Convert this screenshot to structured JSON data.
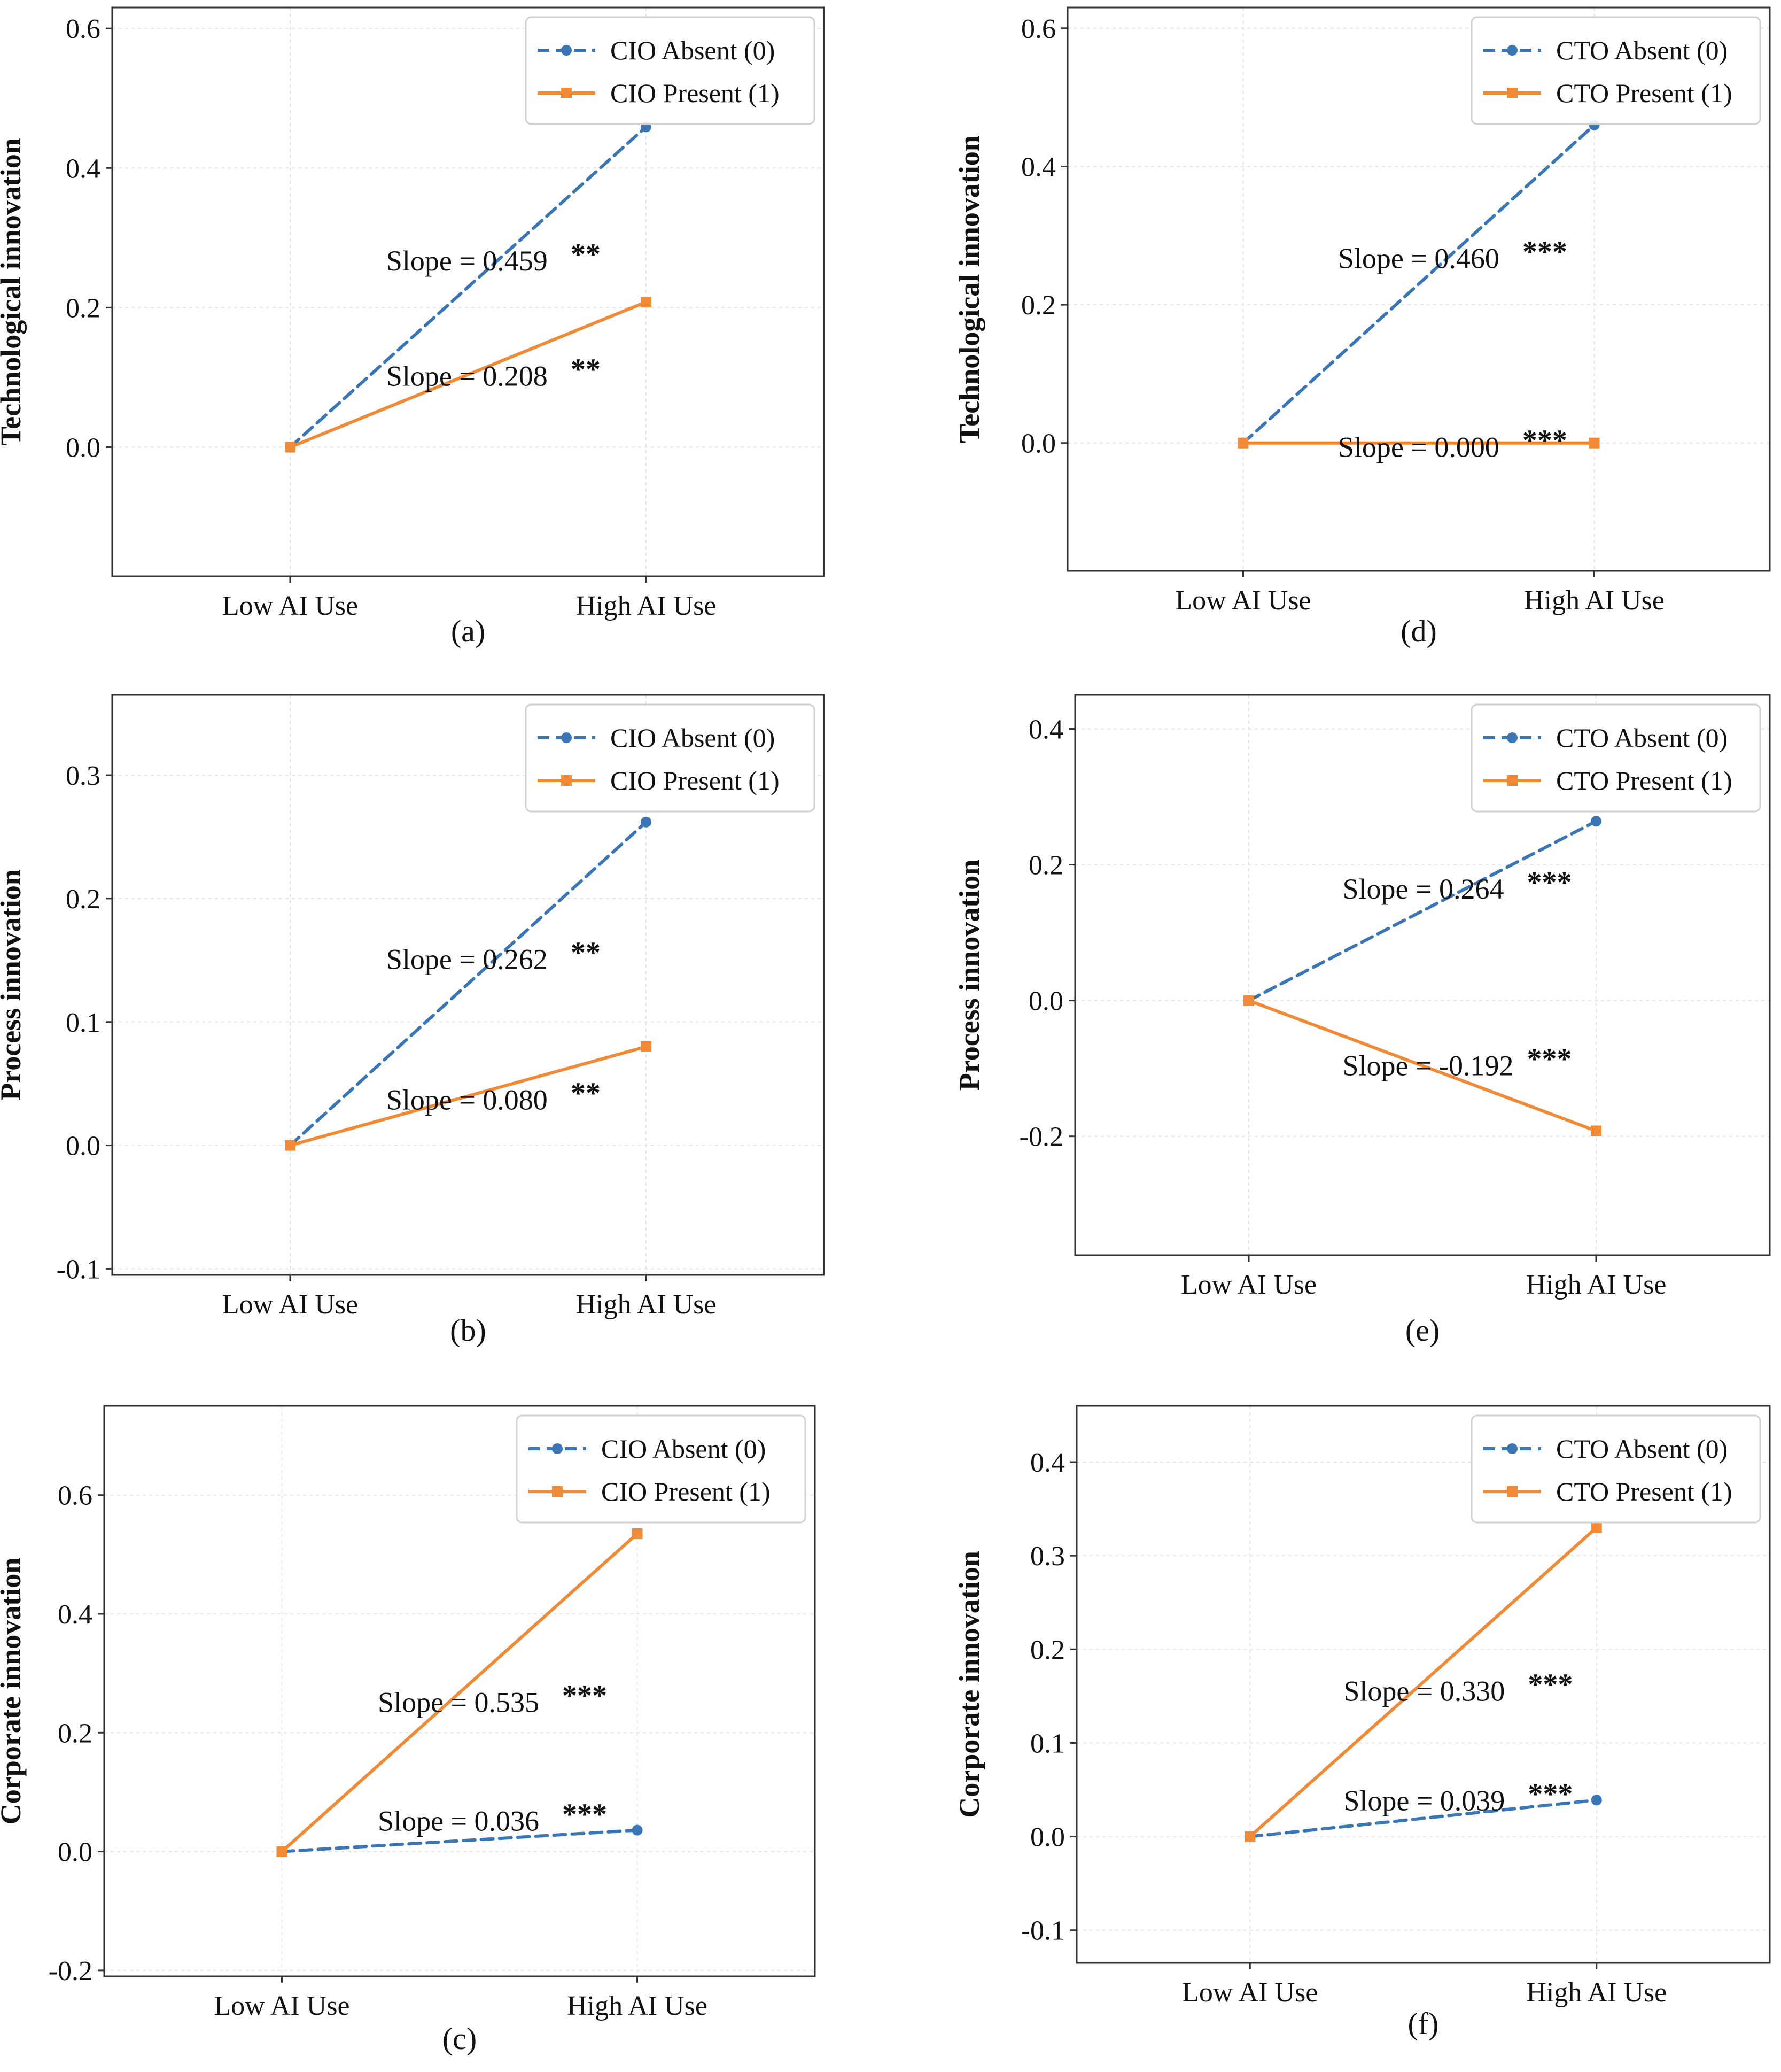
{
  "chart_data": [
    {
      "type": "line",
      "panel_label": "(a)",
      "ylabel": "Technological  innovation",
      "categories": [
        "Low AI Use",
        "High AI Use"
      ],
      "ylim": [
        -0.185,
        0.63
      ],
      "yticks": [
        "0.0",
        "0.2",
        "0.4",
        "0.6"
      ],
      "ytick_values": [
        0.0,
        0.2,
        0.4,
        0.6
      ],
      "legend_position": "top-right",
      "series": [
        {
          "name": "CIO Absent (0)",
          "values": [
            0,
            0.459
          ],
          "style": "dashed",
          "color": "#3a75b5",
          "marker": "circle"
        },
        {
          "name": "CIO Present (1)",
          "values": [
            0,
            0.208
          ],
          "style": "solid",
          "color": "#f08a36",
          "marker": "square"
        }
      ],
      "annotations": [
        {
          "text": "Slope = 0.459",
          "stars": "**",
          "y": 0.253
        },
        {
          "text": "Slope = 0.208",
          "stars": "**",
          "y": 0.088
        }
      ]
    },
    {
      "type": "line",
      "panel_label": "(b)",
      "ylabel": "Process  innovation",
      "categories": [
        "Low AI Use",
        "High AI Use"
      ],
      "ylim": [
        -0.105,
        0.365
      ],
      "yticks": [
        "-0.1",
        "0.0",
        "0.1",
        "0.2",
        "0.3"
      ],
      "ytick_values": [
        -0.1,
        0.0,
        0.1,
        0.2,
        0.3
      ],
      "legend_position": "top-right",
      "series": [
        {
          "name": "CIO Absent (0)",
          "values": [
            0,
            0.262
          ],
          "style": "dashed",
          "color": "#3a75b5",
          "marker": "circle"
        },
        {
          "name": "CIO Present (1)",
          "values": [
            0,
            0.08
          ],
          "style": "solid",
          "color": "#f08a36",
          "marker": "square"
        }
      ],
      "annotations": [
        {
          "text": "Slope = 0.262",
          "stars": "**",
          "y": 0.143
        },
        {
          "text": "Slope = 0.080",
          "stars": "**",
          "y": 0.029
        }
      ]
    },
    {
      "type": "line",
      "panel_label": "(c)",
      "ylabel": "Corporate  innovation",
      "categories": [
        "Low AI Use",
        "High AI Use"
      ],
      "ylim": [
        -0.21,
        0.75
      ],
      "yticks": [
        "-0.2",
        "0.0",
        "0.2",
        "0.4",
        "0.6"
      ],
      "ytick_values": [
        -0.2,
        0.0,
        0.2,
        0.4,
        0.6
      ],
      "legend_position": "top-right",
      "series": [
        {
          "name": "CIO Absent (0)",
          "values": [
            0,
            0.036
          ],
          "style": "dashed",
          "color": "#3a75b5",
          "marker": "circle"
        },
        {
          "name": "CIO Present (1)",
          "values": [
            0,
            0.535
          ],
          "style": "solid",
          "color": "#f08a36",
          "marker": "square"
        }
      ],
      "annotations": [
        {
          "text": "Slope = 0.535",
          "stars": "***",
          "y": 0.235
        },
        {
          "text": "Slope = 0.036",
          "stars": "***",
          "y": 0.035
        }
      ]
    },
    {
      "type": "line",
      "panel_label": "(d)",
      "ylabel": "Technological  innovation",
      "categories": [
        "Low AI Use",
        "High AI Use"
      ],
      "ylim": [
        -0.185,
        0.63
      ],
      "yticks": [
        "0.0",
        "0.2",
        "0.4",
        "0.6"
      ],
      "ytick_values": [
        0.0,
        0.2,
        0.4,
        0.6
      ],
      "legend_position": "top-right",
      "series": [
        {
          "name": "CTO Absent (0)",
          "values": [
            0,
            0.46
          ],
          "style": "dashed",
          "color": "#3a75b5",
          "marker": "circle"
        },
        {
          "name": "CTO Present (1)",
          "values": [
            0,
            0.0
          ],
          "style": "solid",
          "color": "#f08a36",
          "marker": "square"
        }
      ],
      "annotations": [
        {
          "text": "Slope = 0.460",
          "stars": "***",
          "y": 0.253
        },
        {
          "text": "Slope = 0.000",
          "stars": "***",
          "y": -0.02
        }
      ]
    },
    {
      "type": "line",
      "panel_label": "(e)",
      "ylabel": "Process  innovation",
      "categories": [
        "Low AI Use",
        "High AI Use"
      ],
      "ylim": [
        -0.375,
        0.45
      ],
      "yticks": [
        "-0.2",
        "0.0",
        "0.2",
        "0.4"
      ],
      "ytick_values": [
        -0.2,
        0.0,
        0.2,
        0.4
      ],
      "legend_position": "top-right",
      "series": [
        {
          "name": "CTO Absent (0)",
          "values": [
            0,
            0.264
          ],
          "style": "dashed",
          "color": "#3a75b5",
          "marker": "circle"
        },
        {
          "name": "CTO Present (1)",
          "values": [
            0,
            -0.192
          ],
          "style": "solid",
          "color": "#f08a36",
          "marker": "square"
        }
      ],
      "annotations": [
        {
          "text": "Slope = 0.264",
          "stars": "***",
          "y": 0.15
        },
        {
          "text": "Slope = -0.192",
          "stars": "***",
          "y": -0.11
        }
      ]
    },
    {
      "type": "line",
      "panel_label": "(f)",
      "ylabel": "Corporate  innovation",
      "categories": [
        "Low AI Use",
        "High AI Use"
      ],
      "ylim": [
        -0.135,
        0.46
      ],
      "yticks": [
        "-0.1",
        "0.0",
        "0.1",
        "0.2",
        "0.3",
        "0.4"
      ],
      "ytick_values": [
        -0.1,
        0.0,
        0.1,
        0.2,
        0.3,
        0.4
      ],
      "legend_position": "top-right",
      "series": [
        {
          "name": "CTO Absent (0)",
          "values": [
            0,
            0.039
          ],
          "style": "dashed",
          "color": "#3a75b5",
          "marker": "circle"
        },
        {
          "name": "CTO Present (1)",
          "values": [
            0,
            0.33
          ],
          "style": "solid",
          "color": "#f08a36",
          "marker": "square"
        }
      ],
      "annotations": [
        {
          "text": "Slope = 0.330",
          "stars": "***",
          "y": 0.145
        },
        {
          "text": "Slope = 0.039",
          "stars": "***",
          "y": 0.028
        }
      ]
    }
  ]
}
